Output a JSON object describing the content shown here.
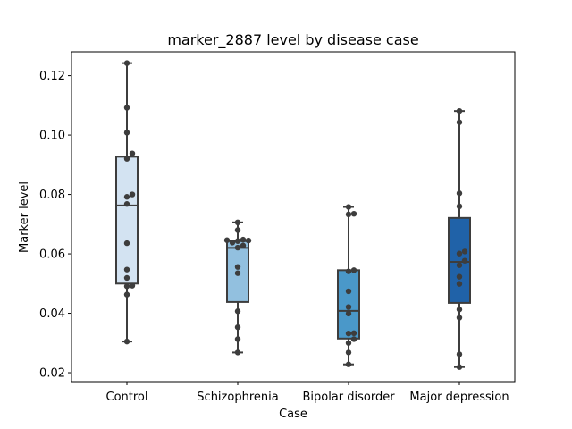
{
  "chart_data": {
    "type": "box",
    "title": "marker_2887 level by disease case",
    "xlabel": "Case",
    "ylabel": "Marker level",
    "categories": [
      "Control",
      "Schizophrenia",
      "Bipolar disorder",
      "Major depression"
    ],
    "ylim": [
      0.017,
      0.128
    ],
    "yticks": [
      0.02,
      0.04,
      0.06,
      0.08,
      0.1,
      0.12
    ],
    "ytick_labels": [
      "0.02",
      "0.04",
      "0.06",
      "0.08",
      "0.10",
      "0.12"
    ],
    "grid": false,
    "legend": "none",
    "boxes": [
      {
        "category": "Control",
        "whisker_low": 0.0305,
        "q1": 0.05,
        "median": 0.0763,
        "q3": 0.0927,
        "whisker_high": 0.1242,
        "color": "#d3e3f2",
        "points": [
          0.1242,
          0.1092,
          0.1008,
          0.0938,
          0.092,
          0.08,
          0.0792,
          0.0768,
          0.0636,
          0.0547,
          0.0519,
          0.0493,
          0.0491,
          0.0463,
          0.0305
        ]
      },
      {
        "category": "Schizophrenia",
        "whisker_low": 0.0268,
        "q1": 0.0438,
        "median": 0.062,
        "q3": 0.0643,
        "whisker_high": 0.0706,
        "color": "#92c0df",
        "points": [
          0.0706,
          0.068,
          0.0648,
          0.0646,
          0.0645,
          0.0643,
          0.0638,
          0.0628,
          0.0621,
          0.0556,
          0.0535,
          0.0407,
          0.0353,
          0.0313,
          0.0268
        ]
      },
      {
        "category": "Bipolar disorder",
        "whisker_low": 0.0228,
        "q1": 0.0315,
        "median": 0.0408,
        "q3": 0.0545,
        "whisker_high": 0.0758,
        "color": "#4a98c9",
        "points": [
          0.0758,
          0.0735,
          0.0733,
          0.0545,
          0.0541,
          0.0474,
          0.0421,
          0.0399,
          0.0333,
          0.0332,
          0.0313,
          0.03,
          0.0268,
          0.0228
        ]
      },
      {
        "category": "Major depression",
        "whisker_low": 0.0219,
        "q1": 0.0435,
        "median": 0.0573,
        "q3": 0.0721,
        "whisker_high": 0.1081,
        "color": "#2062a8",
        "points": [
          0.1081,
          0.1043,
          0.0804,
          0.076,
          0.0608,
          0.0601,
          0.0577,
          0.0562,
          0.0523,
          0.0499,
          0.0413,
          0.0385,
          0.0262,
          0.0219
        ]
      }
    ]
  }
}
